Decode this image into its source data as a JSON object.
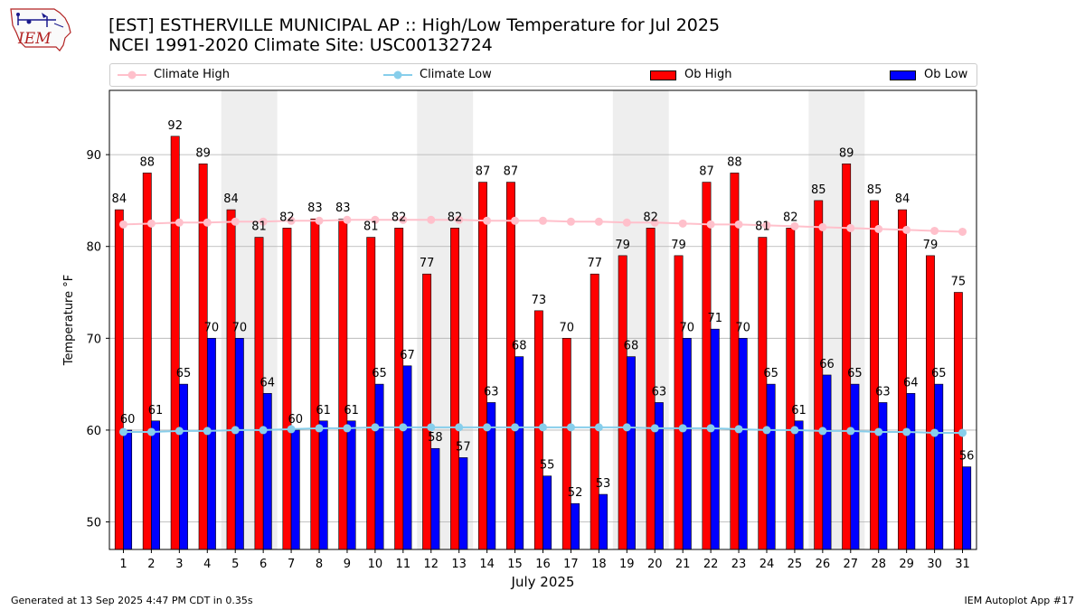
{
  "header": {
    "title_line1": "[EST] ESTHERVILLE MUNICIPAL AP :: High/Low Temperature for Jul 2025",
    "title_line2": "NCEI 1991-2020 Climate Site: USC00132724",
    "logo_text": "IEM"
  },
  "legend": {
    "climate_high": "Climate High",
    "climate_low": "Climate Low",
    "ob_high": "Ob High",
    "ob_low": "Ob Low"
  },
  "colors": {
    "ob_high": "#ff0000",
    "ob_low": "#0000ff",
    "climate_high": "#ffc0cb",
    "climate_low": "#87ceeb",
    "weekend_shade": "#eeeeee",
    "grid": "#b0b0b0"
  },
  "chart_data": {
    "type": "bar",
    "title": "[EST] ESTHERVILLE MUNICIPAL AP :: High/Low Temperature for Jul 2025",
    "xlabel": "July 2025",
    "ylabel": "Temperature °F",
    "ylim": [
      47,
      97
    ],
    "yticks": [
      50,
      60,
      70,
      80,
      90
    ],
    "grid": "horizontal",
    "legend_position": "top",
    "categories": [
      1,
      2,
      3,
      4,
      5,
      6,
      7,
      8,
      9,
      10,
      11,
      12,
      13,
      14,
      15,
      16,
      17,
      18,
      19,
      20,
      21,
      22,
      23,
      24,
      25,
      26,
      27,
      28,
      29,
      30,
      31
    ],
    "shaded_days": [
      [
        5,
        6
      ],
      [
        12,
        13
      ],
      [
        19,
        20
      ],
      [
        26,
        27
      ]
    ],
    "series": [
      {
        "name": "Ob High",
        "type": "bar",
        "values": [
          84,
          88,
          92,
          89,
          84,
          81,
          82,
          83,
          83,
          81,
          82,
          77,
          82,
          87,
          87,
          73,
          70,
          77,
          79,
          82,
          79,
          87,
          88,
          81,
          82,
          85,
          89,
          85,
          84,
          79,
          75
        ]
      },
      {
        "name": "Ob Low",
        "type": "bar",
        "values": [
          60,
          61,
          65,
          70,
          70,
          64,
          60,
          61,
          61,
          65,
          67,
          58,
          57,
          63,
          68,
          55,
          52,
          53,
          68,
          63,
          70,
          71,
          70,
          65,
          61,
          66,
          65,
          63,
          64,
          65,
          56
        ]
      },
      {
        "name": "Climate High",
        "type": "line",
        "values": [
          82.4,
          82.5,
          82.6,
          82.6,
          82.7,
          82.7,
          82.8,
          82.8,
          82.9,
          82.9,
          82.9,
          82.9,
          82.9,
          82.8,
          82.8,
          82.8,
          82.7,
          82.7,
          82.6,
          82.6,
          82.5,
          82.4,
          82.4,
          82.3,
          82.2,
          82.1,
          82.0,
          81.9,
          81.8,
          81.7,
          81.6
        ]
      },
      {
        "name": "Climate Low",
        "type": "line",
        "values": [
          59.8,
          59.8,
          59.9,
          59.9,
          60.0,
          60.0,
          60.1,
          60.2,
          60.2,
          60.3,
          60.3,
          60.3,
          60.3,
          60.3,
          60.3,
          60.3,
          60.3,
          60.3,
          60.3,
          60.2,
          60.2,
          60.2,
          60.1,
          60.0,
          60.0,
          59.9,
          59.9,
          59.8,
          59.8,
          59.7,
          59.7
        ]
      }
    ]
  },
  "footer": {
    "left": "Generated at 13 Sep 2025 4:47 PM CDT in 0.35s",
    "right": "IEM Autoplot App #17"
  }
}
